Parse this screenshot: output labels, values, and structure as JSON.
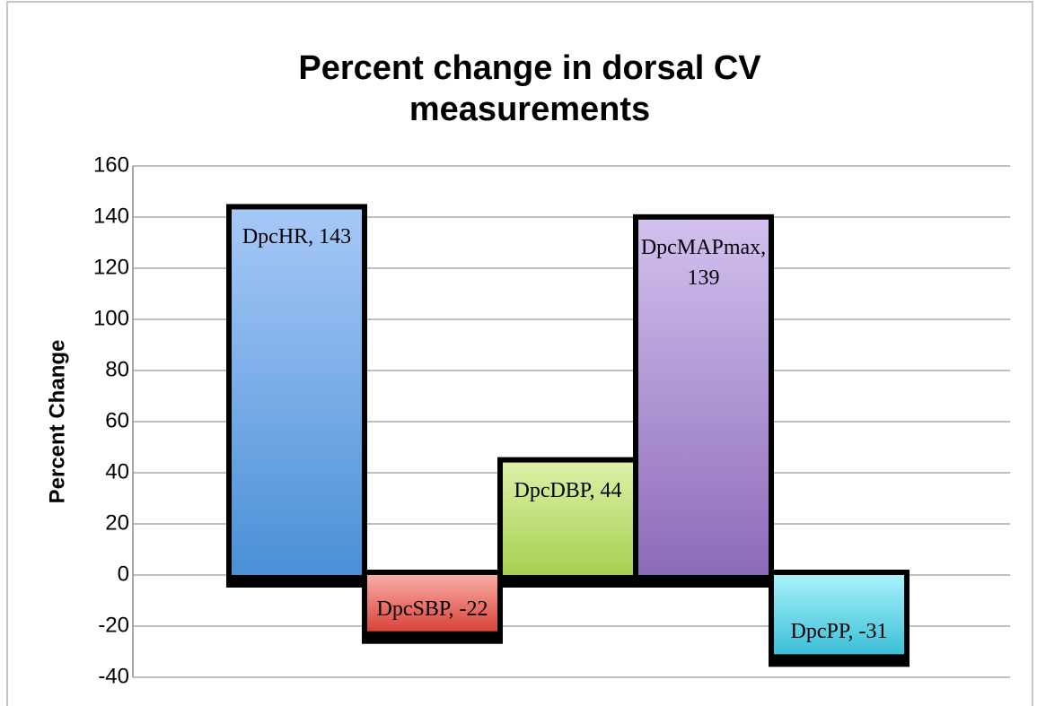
{
  "chart_data": {
    "type": "bar",
    "title": "Percent change in dorsal CV measurements",
    "y_label": "Percent Change",
    "values": [
      143,
      -22,
      44,
      139,
      -31
    ],
    "value_labels": [
      "DpcHR, 143",
      "DpcSBP, -22",
      "DpcDBP, 44",
      "DpcMAPmax, 139",
      "DpcPP, -31"
    ],
    "colors": [
      [
        "#a7c8f7",
        "#4a90d6"
      ],
      [
        "#fbada6",
        "#d9433a"
      ],
      [
        "#dcf0a6",
        "#a6d052"
      ],
      [
        "#d2c0ee",
        "#8c6bb9"
      ],
      [
        "#a8f2fb",
        "#3bbfd8"
      ]
    ],
    "ylim": [
      -40,
      160
    ],
    "yticks": [
      -40,
      -20,
      0,
      20,
      40,
      60,
      80,
      100,
      120,
      140,
      160
    ],
    "grid": true
  }
}
